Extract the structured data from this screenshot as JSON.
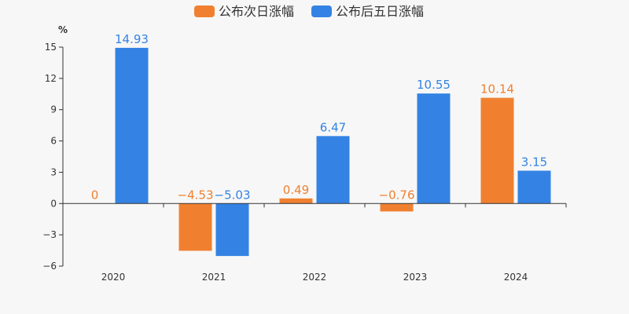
{
  "chart_data": {
    "type": "bar",
    "unit": "%",
    "categories": [
      "2020",
      "2021",
      "2022",
      "2023",
      "2024"
    ],
    "series": [
      {
        "name": "公布次日涨幅",
        "color": "#f08030",
        "values": [
          0,
          -4.53,
          0.49,
          -0.76,
          10.14
        ],
        "labels": [
          "0",
          "−4.53",
          "0.49",
          "−0.76",
          "10.14"
        ]
      },
      {
        "name": "公布后五日涨幅",
        "color": "#3483e4",
        "values": [
          14.93,
          -5.03,
          6.47,
          10.55,
          3.15
        ],
        "labels": [
          "14.93",
          "−5.03",
          "6.47",
          "10.55",
          "3.15"
        ]
      }
    ],
    "ylim": [
      -6,
      15
    ],
    "yticks": [
      15,
      12,
      9,
      6,
      3,
      0,
      -3,
      -6
    ],
    "ytick_labels": [
      "15",
      "12",
      "9",
      "6",
      "3",
      "0",
      "−3",
      "−6"
    ],
    "legend_position": "top-center",
    "grid": false
  }
}
